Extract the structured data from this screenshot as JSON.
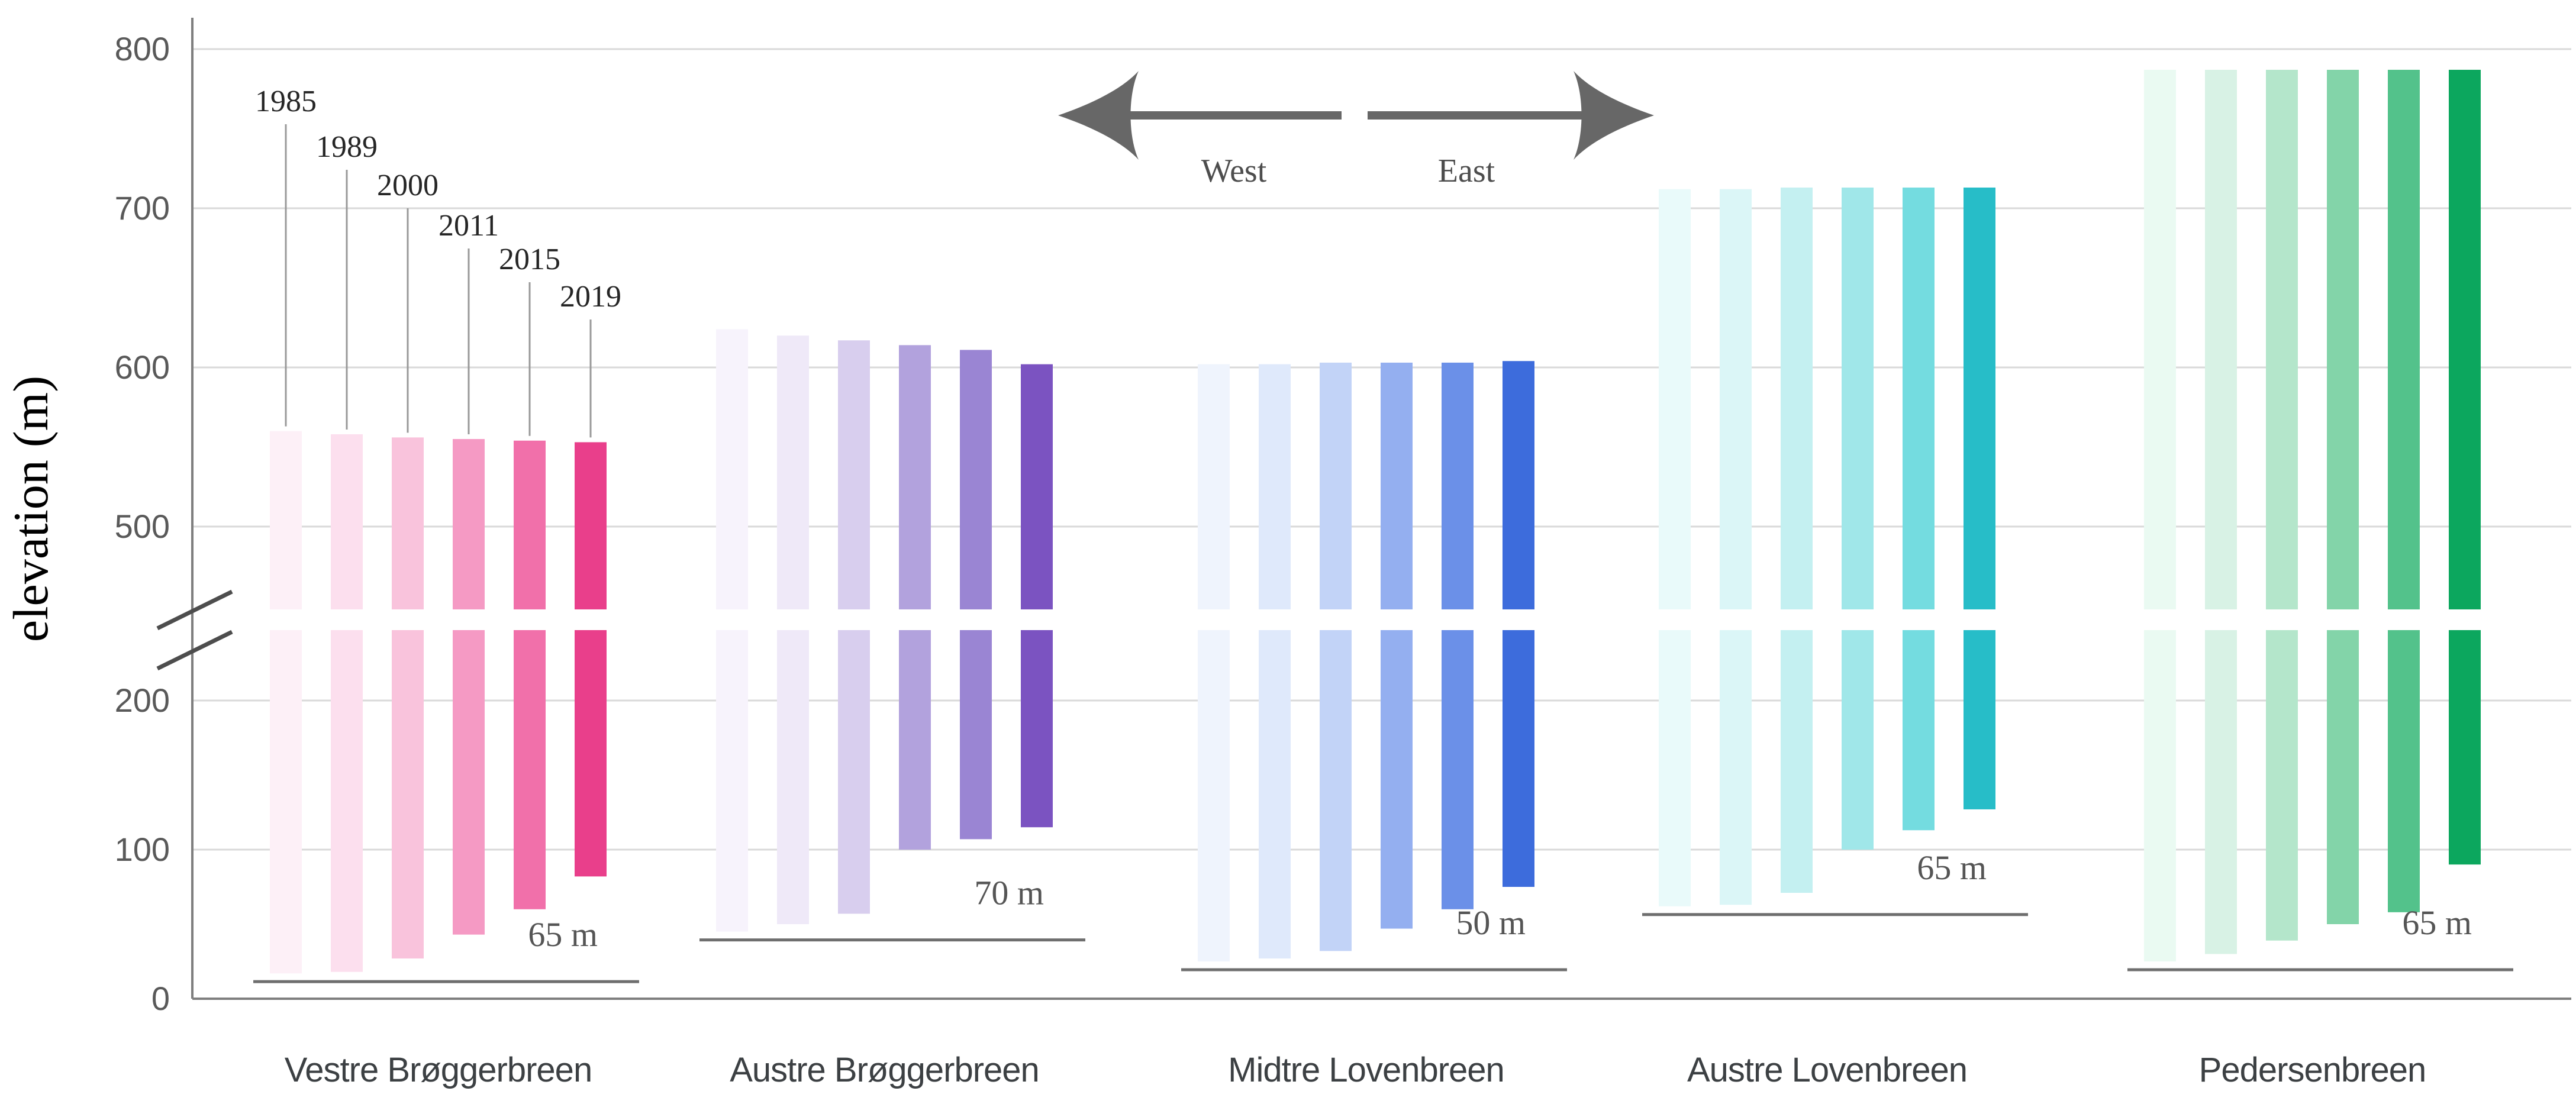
{
  "figure": {
    "kind": "glacier elevation range chart with broken y-axis",
    "background": "#ffffff"
  },
  "y_axis": {
    "title": "elevation (m)",
    "tick_labels": [
      "800",
      "700",
      "600",
      "500",
      "200",
      "100",
      "0"
    ],
    "has_break": true
  },
  "direction_arrows": {
    "west": "West",
    "east": "East"
  },
  "chart_data": {
    "type": "bar",
    "subtype": "floating-range-bars",
    "title": "",
    "xlabel": "",
    "ylabel": "elevation (m)",
    "ylim": [
      0,
      800
    ],
    "y_ticks": [
      800,
      700,
      600,
      500,
      200,
      100,
      0
    ],
    "axis_break_between": [
      250,
      450
    ],
    "grid": true,
    "years": [
      "1985",
      "1989",
      "2000",
      "2011",
      "2015",
      "2019"
    ],
    "direction_labels": [
      "West",
      "East"
    ],
    "colors": {
      "grid": "#d9d9d9",
      "axis": "#7f7f7f",
      "baseline": "#6e6e6e",
      "leader_line": "#999999",
      "break_slash": "#4d4d4d",
      "arrow": "#676767"
    },
    "glaciers": [
      {
        "name": "Vestre Brøggerbreen",
        "terminus_rise_label": "65 m",
        "colors": [
          "#fdf0f7",
          "#fcdfee",
          "#f9c3dc",
          "#f59ac4",
          "#f170aa",
          "#e93f8b"
        ],
        "bars": [
          {
            "year": "1985",
            "bottom": 17,
            "top": 560
          },
          {
            "year": "1989",
            "bottom": 18,
            "top": 558
          },
          {
            "year": "2000",
            "bottom": 27,
            "top": 556
          },
          {
            "year": "2011",
            "bottom": 43,
            "top": 555
          },
          {
            "year": "2015",
            "bottom": 60,
            "top": 554
          },
          {
            "year": "2019",
            "bottom": 82,
            "top": 553
          }
        ]
      },
      {
        "name": "Austre Brøggerbreen",
        "terminus_rise_label": "70 m",
        "colors": [
          "#f7f3fc",
          "#efe9f8",
          "#d8ceee",
          "#b2a2dd",
          "#9a85d3",
          "#7b53c1"
        ],
        "bars": [
          {
            "year": "1985",
            "bottom": 45,
            "top": 624
          },
          {
            "year": "1989",
            "bottom": 50,
            "top": 620
          },
          {
            "year": "2000",
            "bottom": 57,
            "top": 617
          },
          {
            "year": "2011",
            "bottom": 100,
            "top": 614
          },
          {
            "year": "2015",
            "bottom": 107,
            "top": 611
          },
          {
            "year": "2019",
            "bottom": 115,
            "top": 602
          }
        ]
      },
      {
        "name": "Midtre Lovenbreen",
        "terminus_rise_label": "50 m",
        "colors": [
          "#eff4fd",
          "#dfe9fb",
          "#c2d3f7",
          "#94aff0",
          "#6b90e8",
          "#3d6cdc"
        ],
        "bars": [
          {
            "year": "1985",
            "bottom": 25,
            "top": 602
          },
          {
            "year": "1989",
            "bottom": 27,
            "top": 602
          },
          {
            "year": "2000",
            "bottom": 32,
            "top": 603
          },
          {
            "year": "2011",
            "bottom": 47,
            "top": 603
          },
          {
            "year": "2015",
            "bottom": 60,
            "top": 603
          },
          {
            "year": "2019",
            "bottom": 75,
            "top": 604
          }
        ]
      },
      {
        "name": "Austre Lovenbreen",
        "terminus_rise_label": "65 m",
        "colors": [
          "#e9fafa",
          "#dbf6f7",
          "#c4f0f1",
          "#a0e7e9",
          "#74dce0",
          "#27bdc8"
        ],
        "bars": [
          {
            "year": "1985",
            "bottom": 62,
            "top": 712
          },
          {
            "year": "1989",
            "bottom": 63,
            "top": 712
          },
          {
            "year": "2000",
            "bottom": 71,
            "top": 713
          },
          {
            "year": "2011",
            "bottom": 100,
            "top": 713
          },
          {
            "year": "2015",
            "bottom": 113,
            "top": 713
          },
          {
            "year": "2019",
            "bottom": 127,
            "top": 713
          }
        ]
      },
      {
        "name": "Pedersenbreen",
        "terminus_rise_label": "65 m",
        "colors": [
          "#eafaf2",
          "#d8f2e5",
          "#b4e6cb",
          "#83d4a9",
          "#53c28b",
          "#0ca75e"
        ],
        "bars": [
          {
            "year": "1985",
            "bottom": 25,
            "top": 787
          },
          {
            "year": "1989",
            "bottom": 30,
            "top": 787
          },
          {
            "year": "2000",
            "bottom": 39,
            "top": 787
          },
          {
            "year": "2011",
            "bottom": 50,
            "top": 787
          },
          {
            "year": "2015",
            "bottom": 58,
            "top": 787
          },
          {
            "year": "2019",
            "bottom": 90,
            "top": 787
          }
        ]
      }
    ]
  }
}
